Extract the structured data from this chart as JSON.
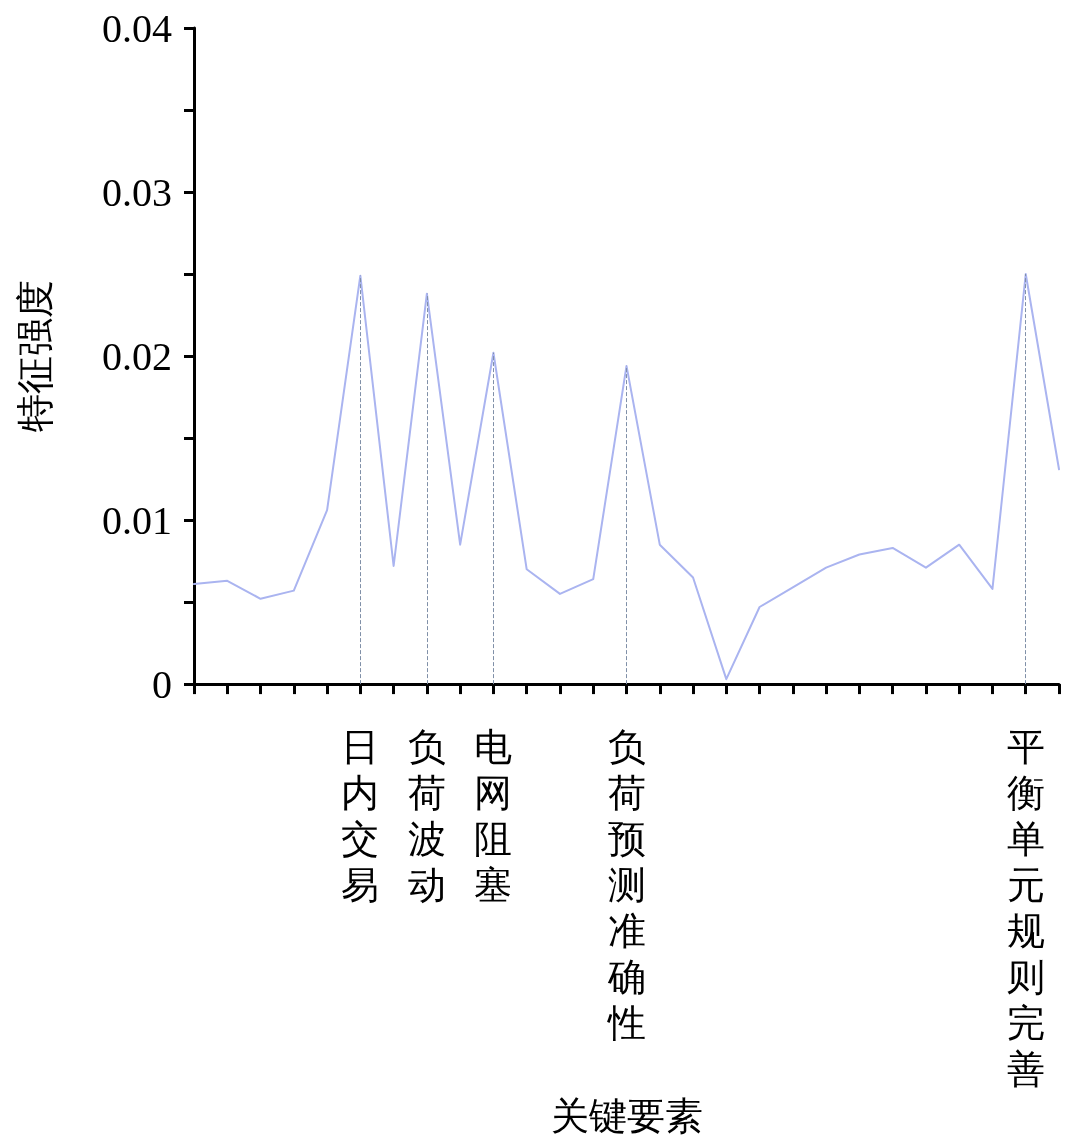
{
  "chart_data": {
    "type": "line",
    "xlabel": "关键要素",
    "ylabel": "特征强度",
    "categories": [
      null,
      null,
      null,
      null,
      null,
      "日内交易",
      null,
      "负荷波动",
      null,
      "电网阻塞",
      null,
      null,
      null,
      "负荷预测准确性",
      null,
      null,
      null,
      null,
      null,
      null,
      null,
      null,
      null,
      null,
      null,
      "平衡单元规则完善",
      null
    ],
    "series": [
      {
        "color": "#aab4f0",
        "values": [
          0.0061,
          0.0063,
          0.0052,
          0.0057,
          0.0106,
          0.0249,
          0.0072,
          0.0238,
          0.0085,
          0.0202,
          0.007,
          0.0055,
          0.0064,
          0.0194,
          0.0085,
          0.0065,
          0.0003,
          0.0047,
          0.0059,
          0.0071,
          0.0079,
          0.0083,
          0.0071,
          0.0085,
          0.0058,
          0.025,
          0.0131
        ]
      }
    ],
    "ylim": [
      0,
      0.04
    ],
    "yticks": [
      0,
      {
        "value": 0.005,
        "label": null
      },
      0.01,
      {
        "value": 0.015,
        "label": null
      },
      0.02,
      {
        "value": 0.025,
        "label": null
      },
      0.03,
      {
        "value": 0.035,
        "label": null
      },
      0.04
    ],
    "ref_lines": [
      {
        "axis": "x",
        "value": "日内交易",
        "color": "#8090a8",
        "line_style": "dashed"
      },
      {
        "axis": "x",
        "value": "负荷波动",
        "color": "#8090a8",
        "line_style": "dashed"
      },
      {
        "axis": "x",
        "value": "电网阻塞",
        "color": "#8090a8",
        "line_style": "dashed"
      },
      {
        "axis": "x",
        "value": "负荷预测准确性",
        "color": "#8090a8",
        "line_style": "dashed"
      },
      {
        "axis": "x",
        "value": "平衡单元规则完善",
        "color": "#8090a8",
        "line_style": "dashed"
      }
    ],
    "grid": false,
    "marker": "none",
    "line_style": "solid"
  }
}
